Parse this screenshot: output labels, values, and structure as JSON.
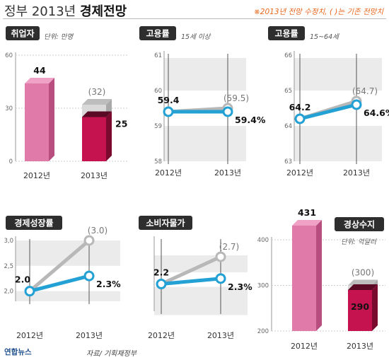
{
  "header": {
    "title_light": "정부 2013년",
    "title_bold": "경제전망",
    "note": "※2013년 전망 수정치, ( )는 기존 전망치"
  },
  "footer": {
    "source": "자료/ 기획재정부",
    "logo": "연합뉴스"
  },
  "colors": {
    "badge": "#2e2e2e",
    "line_new": "#23a0d4",
    "line_old": "#b8b8b8",
    "bar_light": "#e07aa9",
    "bar_dark": "#c4134e",
    "band": "#ebebeb"
  },
  "chart_data": [
    {
      "id": "employed",
      "type": "bar",
      "title": "취업자",
      "subtitle": "단위: 만명",
      "categories": [
        "2012년",
        "2013년"
      ],
      "values": [
        44,
        25
      ],
      "previous": [
        null,
        32
      ],
      "value_labels": [
        "44",
        "25"
      ],
      "previous_labels": [
        "",
        "(32)"
      ],
      "ylim": [
        0,
        60
      ],
      "yticks": [
        0,
        30,
        60
      ]
    },
    {
      "id": "employment-15plus",
      "type": "line",
      "title": "고용률",
      "subtitle": "15세 이상",
      "categories": [
        "2012년",
        "2013년"
      ],
      "ylim": [
        58,
        61
      ],
      "yticks": [
        58,
        59,
        60,
        61
      ],
      "series": [
        {
          "values": [
            59.4,
            59.4
          ],
          "labels": [
            "59.4",
            "59.4%"
          ]
        },
        {
          "values": [
            59.4,
            59.5
          ],
          "labels": [
            "",
            "(59.5)"
          ]
        }
      ]
    },
    {
      "id": "employment-15-64",
      "type": "line",
      "title": "고용률",
      "subtitle": "15~64세",
      "categories": [
        "2012년",
        "2013년"
      ],
      "ylim": [
        63,
        66
      ],
      "yticks": [
        63,
        64,
        65,
        66
      ],
      "series": [
        {
          "values": [
            64.2,
            64.6
          ],
          "labels": [
            "64.2",
            "64.6%"
          ]
        },
        {
          "values": [
            64.2,
            64.7
          ],
          "labels": [
            "",
            "(64.7)"
          ]
        }
      ]
    },
    {
      "id": "growth",
      "type": "line",
      "title": "경제성장률",
      "categories": [
        "2012년",
        "2013년"
      ],
      "ylim": [
        1.8,
        3.0
      ],
      "yticks": [
        2.0,
        2.5,
        3.0
      ],
      "ytick_labels": [
        "2,0",
        "2,5",
        "3,0"
      ],
      "series": [
        {
          "values": [
            2.0,
            2.3
          ],
          "labels": [
            "2.0",
            "2.3%"
          ]
        },
        {
          "values": [
            2.0,
            3.0
          ],
          "labels": [
            "",
            "(3.0)"
          ]
        }
      ]
    },
    {
      "id": "cpi",
      "type": "line",
      "title": "소비자물가",
      "categories": [
        "2012년",
        "2013년"
      ],
      "ylim": [
        1.7,
        3.0
      ],
      "yticks": [],
      "series": [
        {
          "values": [
            2.2,
            2.3
          ],
          "labels": [
            "2.2",
            "2.3%"
          ]
        },
        {
          "values": [
            2.2,
            2.7
          ],
          "labels": [
            "",
            "(2.7)"
          ]
        }
      ]
    },
    {
      "id": "current-account",
      "type": "bar",
      "title": "경상수지",
      "subtitle": "단위: 억달러",
      "categories": [
        "2012년",
        "2013년"
      ],
      "values": [
        431,
        290
      ],
      "previous": [
        null,
        300
      ],
      "value_labels": [
        "431",
        "290"
      ],
      "previous_labels": [
        "",
        "(300)"
      ],
      "ylim": [
        200,
        400
      ],
      "yticks": [
        200,
        300,
        400
      ]
    }
  ]
}
